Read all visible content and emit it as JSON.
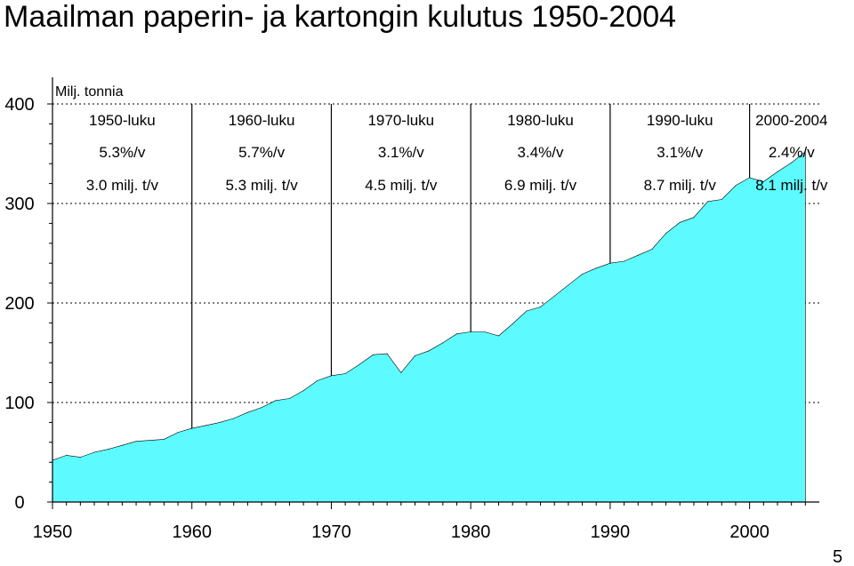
{
  "page_number": "5",
  "chart_data": {
    "type": "area",
    "title": "Maailman paperin- ja kartongin kulutus 1950-2004",
    "ylabel": "Milj. tonnia",
    "xlim": [
      1950,
      2005
    ],
    "ylim": [
      0,
      400
    ],
    "x_ticks": [
      1950,
      1960,
      1970,
      1980,
      1990,
      2000
    ],
    "y_ticks": [
      0,
      100,
      200,
      300,
      400
    ],
    "grid": "dashed horizontal",
    "fill_color": "#5dfbff",
    "periods": [
      {
        "label": "1950-luku",
        "growth": "5.3%/v",
        "increase": "3.0 milj. t/v"
      },
      {
        "label": "1960-luku",
        "growth": "5.7%/v",
        "increase": "5.3 milj. t/v"
      },
      {
        "label": "1970-luku",
        "growth": "3.1%/v",
        "increase": "4.5 milj. t/v"
      },
      {
        "label": "1980-luku",
        "growth": "3.4%/v",
        "increase": "6.9 milj. t/v"
      },
      {
        "label": "1990-luku",
        "growth": "3.1%/v",
        "increase": "8.7 milj. t/v"
      },
      {
        "label": "2000-2004",
        "growth": "2.4%/v",
        "increase": "8.1 milj. t/v"
      }
    ],
    "period_dividers": [
      1960,
      1970,
      1980,
      1990,
      2000
    ],
    "x": [
      1950,
      1951,
      1952,
      1953,
      1954,
      1955,
      1956,
      1957,
      1958,
      1959,
      1960,
      1961,
      1962,
      1963,
      1964,
      1965,
      1966,
      1967,
      1968,
      1969,
      1970,
      1971,
      1972,
      1973,
      1974,
      1975,
      1976,
      1977,
      1978,
      1979,
      1980,
      1981,
      1982,
      1983,
      1984,
      1985,
      1986,
      1987,
      1988,
      1989,
      1990,
      1991,
      1992,
      1993,
      1994,
      1995,
      1996,
      1997,
      1998,
      1999,
      2000,
      2001,
      2002,
      2003,
      2004
    ],
    "series": [
      {
        "values": [
          42,
          47,
          45,
          50,
          53,
          57,
          61,
          62,
          63,
          70,
          74,
          77,
          80,
          84,
          90,
          95,
          102,
          104,
          112,
          122,
          127,
          129,
          138,
          148,
          149,
          130,
          147,
          152,
          160,
          169,
          171,
          171,
          167,
          179,
          192,
          196,
          207,
          218,
          229,
          235,
          240,
          242,
          248,
          254,
          270,
          281,
          286,
          302,
          304,
          318,
          326,
          322,
          332,
          341,
          352
        ]
      }
    ]
  }
}
